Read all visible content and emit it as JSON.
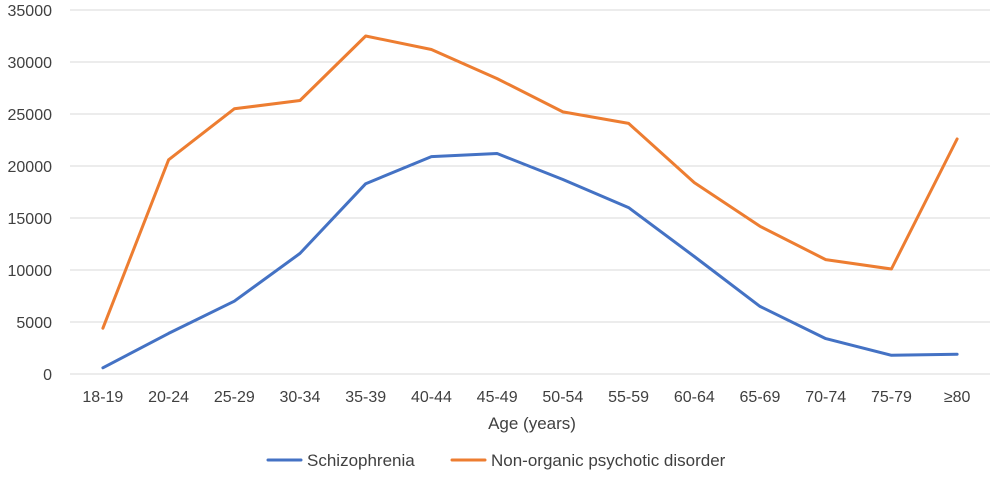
{
  "chart_data": {
    "type": "line",
    "title": "",
    "xlabel": "Age (years)",
    "ylabel": "",
    "categories": [
      "18-19",
      "20-24",
      "25-29",
      "30-34",
      "35-39",
      "40-44",
      "45-49",
      "50-54",
      "55-59",
      "60-64",
      "65-69",
      "70-74",
      "75-79",
      "≥80"
    ],
    "ylim": [
      0,
      35000
    ],
    "yticks": [
      "0",
      "5000",
      "10000",
      "15000",
      "20000",
      "25000",
      "30000",
      "35000"
    ],
    "grid": true,
    "legend_position": "bottom",
    "series": [
      {
        "name": "Schizophrenia",
        "color": "#4472C4",
        "values": [
          600,
          3900,
          7000,
          11600,
          18300,
          20900,
          21200,
          18700,
          16000,
          11300,
          6500,
          3400,
          1800,
          1900
        ]
      },
      {
        "name": "Non-organic psychotic disorder",
        "color": "#ED7D31",
        "values": [
          4400,
          20600,
          25500,
          26300,
          32500,
          31200,
          28400,
          25200,
          24100,
          18400,
          14200,
          11000,
          10100,
          22600
        ]
      }
    ]
  }
}
